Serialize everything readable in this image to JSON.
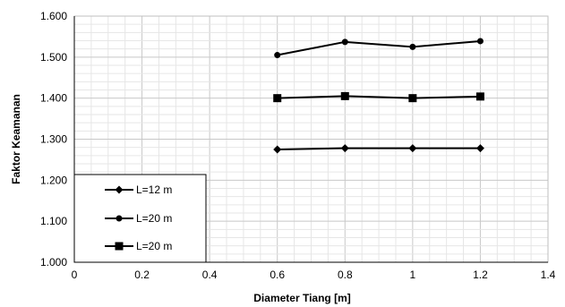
{
  "chart_data": {
    "type": "line",
    "xlabel": "Diameter Tiang [m]",
    "ylabel": "Faktor Keamanan",
    "xlim": [
      0,
      1.4
    ],
    "ylim": [
      1.0,
      1.6
    ],
    "x_ticks": [
      "0",
      "0.2",
      "0.4",
      "0.6",
      "0.8",
      "1",
      "1.2",
      "1.4"
    ],
    "y_ticks": [
      "1.000",
      "1.100",
      "1.200",
      "1.300",
      "1.400",
      "1.500",
      "1.600"
    ],
    "grid": true,
    "legend_placement": "bottom-left",
    "x": [
      0.6,
      0.8,
      1.0,
      1.2
    ],
    "series": [
      {
        "name": "L=12 m",
        "marker": "diamond",
        "color": "#000000",
        "values": [
          1.275,
          1.278,
          1.278,
          1.278
        ]
      },
      {
        "name": "L=20 m",
        "marker": "circle",
        "color": "#000000",
        "values": [
          1.505,
          1.537,
          1.525,
          1.539
        ]
      },
      {
        "name": "L=20 m",
        "marker": "square",
        "color": "#000000",
        "values": [
          1.4,
          1.405,
          1.4,
          1.404
        ]
      }
    ]
  }
}
